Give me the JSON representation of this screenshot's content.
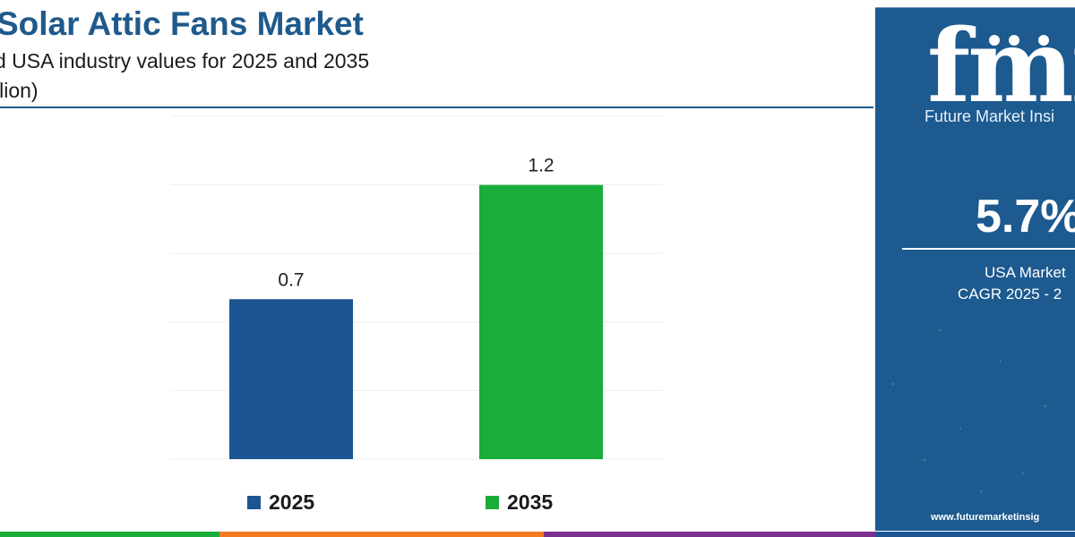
{
  "header": {
    "title": "Solar Attic Fans Market",
    "subtitle_line1": "d USA industry values for 2025 and 2035",
    "subtitle_line2": "llion)"
  },
  "colors": {
    "brand_blue": "#1f5a8c",
    "bar_2025": "#1c5591",
    "bar_2035": "#1aad3a",
    "panel_bg": "#1c5a8f",
    "strip": [
      "#1aad3a",
      "#f27a21",
      "#7b2f8e",
      "#1c5591"
    ]
  },
  "chart_data": {
    "type": "bar",
    "categories": [
      "2025",
      "2035"
    ],
    "values": [
      0.7,
      1.2
    ],
    "data_labels": [
      "0.7",
      "1.2"
    ],
    "colors": [
      "#1c5591",
      "#1aad3a"
    ],
    "title": "Solar Attic Fans Market",
    "legend": [
      {
        "label": "2025",
        "color": "#1c5591"
      },
      {
        "label": "2035",
        "color": "#1aad3a"
      }
    ],
    "legend_position": "bottom",
    "ylim": [
      0,
      1.5
    ],
    "grid": true
  },
  "side_panel": {
    "logo_text": "fmi",
    "logo_sub": "Future Market Insi",
    "cagr_value": "5.7%",
    "cagr_label_line1": "USA Market",
    "cagr_label_line2": "CAGR 2025 - 2",
    "website": "www.futuremarketinsig"
  }
}
